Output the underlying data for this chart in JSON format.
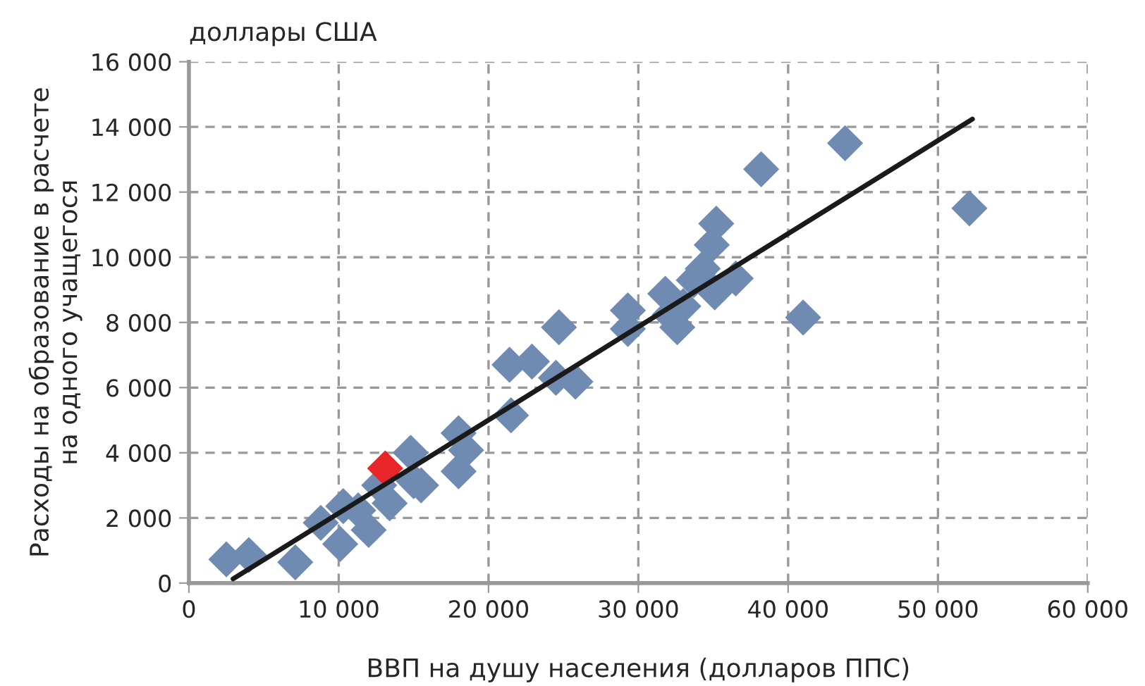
{
  "chart_data": {
    "type": "scatter",
    "xlabel": "ВВП на душу населения (долларов ППС)",
    "ylabel": "Расходы на образование в расчете\nна одного учащегося",
    "annotations": [
      "доллары США"
    ],
    "xlim": [
      0,
      60000
    ],
    "ylim": [
      0,
      16000
    ],
    "xticks": [
      {
        "value": 0,
        "label": "0"
      },
      {
        "value": 10000,
        "label": "10 000"
      },
      {
        "value": 20000,
        "label": "20 000"
      },
      {
        "value": 30000,
        "label": "30 000"
      },
      {
        "value": 40000,
        "label": "40 000"
      },
      {
        "value": 50000,
        "label": "50 000"
      },
      {
        "value": 60000,
        "label": "60 000"
      }
    ],
    "yticks": [
      {
        "value": 0,
        "label": "0"
      },
      {
        "value": 2000,
        "label": "2 000"
      },
      {
        "value": 4000,
        "label": "4 000"
      },
      {
        "value": 6000,
        "label": "6 000"
      },
      {
        "value": 8000,
        "label": "8 000"
      },
      {
        "value": 10000,
        "label": "10 000"
      },
      {
        "value": 12000,
        "label": "12 000"
      },
      {
        "value": 14000,
        "label": "14 000"
      },
      {
        "value": 16000,
        "label": "16 000"
      }
    ],
    "grid": true,
    "marker": "diamond",
    "legend": false,
    "series": [
      {
        "color": "#6f8bb1",
        "x": [
          2500,
          4000,
          7100,
          8800,
          10100,
          10300,
          11300,
          12000,
          12700,
          13400,
          14800,
          15000,
          15500,
          18000,
          18000,
          18500,
          21500,
          21400,
          22900,
          24700,
          24500,
          25800,
          29300,
          29300,
          31800,
          32600,
          32100,
          33000,
          33700,
          34300,
          35100,
          34900,
          35200,
          36500,
          38200,
          43800,
          52100,
          41000
        ],
        "values": [
          730,
          860,
          640,
          1850,
          1200,
          2360,
          2230,
          1630,
          3000,
          2450,
          4000,
          3130,
          3000,
          4600,
          3430,
          4080,
          5150,
          6700,
          6800,
          7850,
          6300,
          6180,
          8370,
          7800,
          8880,
          7850,
          8240,
          8500,
          9300,
          9650,
          8920,
          10380,
          11030,
          9350,
          12700,
          13500,
          11500,
          8150
        ]
      },
      {
        "color": "#e8262a",
        "x": [
          13100
        ],
        "values": [
          3520
        ]
      },
      {
        "type": "line",
        "color": "#1a1a1a",
        "line_style": "solid",
        "marker": "none",
        "x": [
          2950,
          52300
        ],
        "values": [
          130,
          14240
        ]
      }
    ]
  }
}
